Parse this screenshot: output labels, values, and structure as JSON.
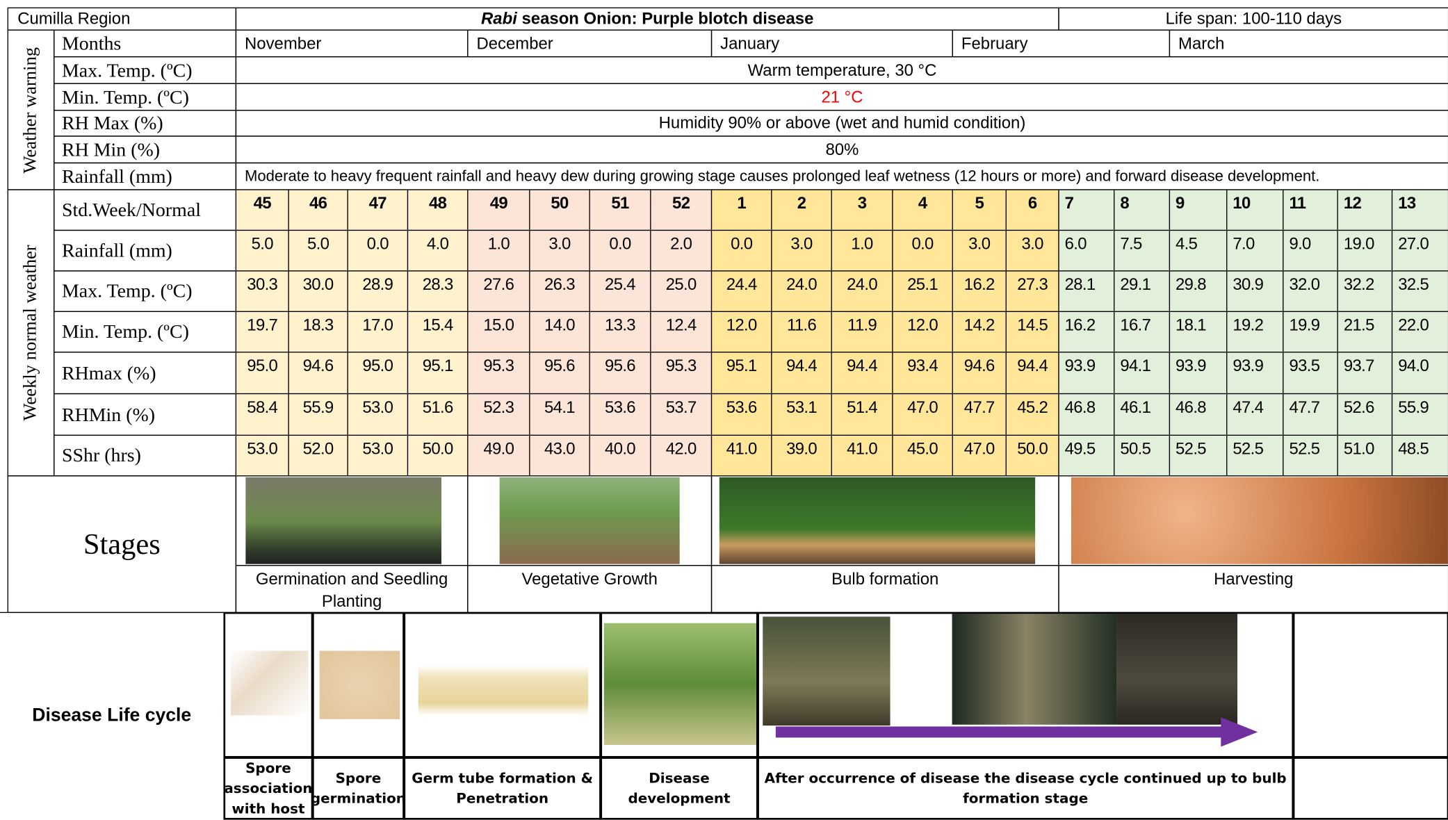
{
  "header": {
    "region": "Cumilla Region",
    "title_italic": "Rabi",
    "title": "season Onion: Purple blotch disease",
    "life_span": "Life span: 100-110 days"
  },
  "weather_warning": {
    "label": "Weather warning",
    "months_label": "Months",
    "months": [
      "November",
      "December",
      "January",
      "February",
      "March"
    ],
    "rows": [
      {
        "label": "Max. Temp. (ºC)",
        "text": "Warm temperature, 30 °C"
      },
      {
        "label": "Min. Temp. (ºC)",
        "text": "21 °C"
      },
      {
        "label": "RH Max (%)",
        "text": "Humidity 90% or above (wet and humid condition)"
      },
      {
        "label": "RH Min (%)",
        "text": "80%"
      },
      {
        "label": "Rainfall (mm)",
        "text": "Moderate to heavy frequent rainfall and heavy dew during growing stage causes prolonged leaf wetness (12 hours or more) and forward disease development."
      }
    ]
  },
  "weekly_weather": {
    "label": "Weekly normal weather",
    "rows": [
      {
        "label": "Std.Week/Normal",
        "values": [
          "45",
          "46",
          "47",
          "48",
          "49",
          "50",
          "51",
          "52",
          "1",
          "2",
          "3",
          "4",
          "5",
          "6",
          "7",
          "8",
          "9",
          "10",
          "11",
          "12",
          "13"
        ]
      },
      {
        "label": "Rainfall (mm)",
        "values": [
          "5.0",
          "5.0",
          "0.0",
          "4.0",
          "1.0",
          "3.0",
          "0.0",
          "2.0",
          "0.0",
          "3.0",
          "1.0",
          "0.0",
          "3.0",
          "3.0",
          "6.0",
          "7.5",
          "4.5",
          "7.0",
          "9.0",
          "19.0",
          "27.0"
        ]
      },
      {
        "label": "Max. Temp. (ºC)",
        "values": [
          "30.3",
          "30.0",
          "28.9",
          "28.3",
          "27.6",
          "26.3",
          "25.4",
          "25.0",
          "24.4",
          "24.0",
          "24.0",
          "25.1",
          "16.2",
          "27.3",
          "28.1",
          "29.1",
          "29.8",
          "30.9",
          "32.0",
          "32.2",
          "32.5"
        ]
      },
      {
        "label": "Min. Temp. (ºC)",
        "values": [
          "19.7",
          "18.3",
          "17.0",
          "15.4",
          "15.0",
          "14.0",
          "13.3",
          "12.4",
          "12.0",
          "11.6",
          "11.9",
          "12.0",
          "14.2",
          "14.5",
          "16.2",
          "16.7",
          "18.1",
          "19.2",
          "19.9",
          "21.5",
          "22.0"
        ]
      },
      {
        "label": "RHmax (%)",
        "values": [
          "95.0",
          "94.6",
          "95.0",
          "95.1",
          "95.3",
          "95.6",
          "95.6",
          "95.3",
          "95.1",
          "94.4",
          "94.4",
          "93.4",
          "94.6",
          "94.4",
          "93.9",
          "94.1",
          "93.9",
          "93.9",
          "93.5",
          "93.7",
          "94.0"
        ]
      },
      {
        "label": "RHMin (%)",
        "values": [
          "58.4",
          "55.9",
          "53.0",
          "51.6",
          "52.3",
          "54.1",
          "53.6",
          "53.7",
          "53.6",
          "53.1",
          "51.4",
          "47.0",
          "47.7",
          "45.2",
          "46.8",
          "46.1",
          "46.8",
          "47.4",
          "47.7",
          "52.6",
          "55.9"
        ]
      },
      {
        "label": "SShr (hrs)",
        "values": [
          "53.0",
          "52.0",
          "53.0",
          "50.0",
          "49.0",
          "43.0",
          "40.0",
          "42.0",
          "41.0",
          "39.0",
          "41.0",
          "45.0",
          "47.0",
          "50.0",
          "49.5",
          "50.5",
          "52.5",
          "52.5",
          "52.5",
          "51.0",
          "48.5"
        ]
      }
    ]
  },
  "stages": {
    "label": "Stages",
    "items": [
      "Germination and Seedling Planting",
      "Vegetative Growth",
      "Bulb formation",
      "Harvesting"
    ]
  },
  "disease_life_cycle": {
    "label": "Disease Life cycle",
    "items": [
      "Spore association with host",
      "Spore germination",
      "Germ tube formation & Penetration",
      "Disease development",
      "After occurrence of disease the disease cycle continued up to bulb formation stage"
    ]
  }
}
